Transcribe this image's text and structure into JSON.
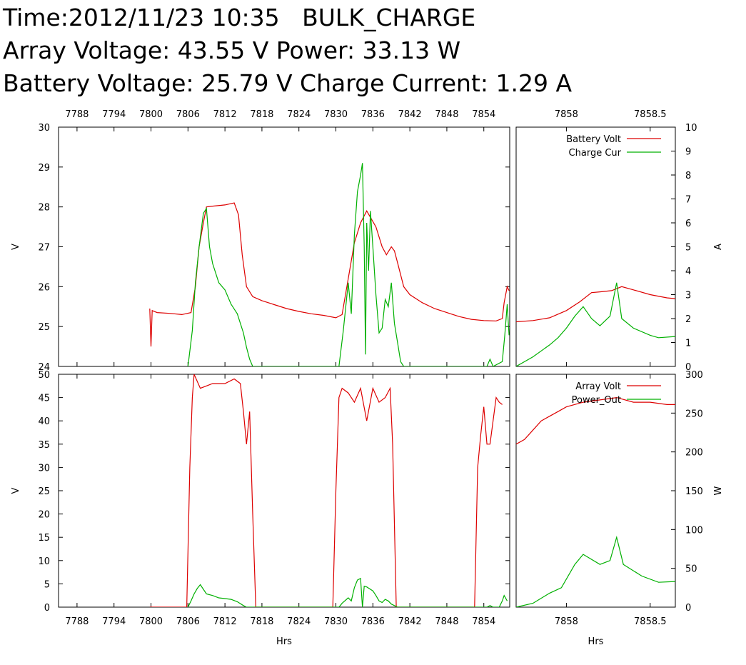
{
  "header": {
    "line1": "Time:2012/11/23 10:35   BULK_CHARGE",
    "line2": "Array Voltage: 43.55 V Power: 33.13 W",
    "line3": "Battery Voltage: 25.79 V Charge Current: 1.29 A"
  },
  "colors": {
    "red": "#dd0000",
    "green": "#00b000",
    "axis": "#000000"
  },
  "chart_data": [
    {
      "id": "battery_long",
      "type": "line",
      "xlabel": "",
      "ylabel": "V",
      "xlim": [
        7785,
        7858.2
      ],
      "ylim": [
        24,
        30
      ],
      "x2ticks": [
        7788,
        7794,
        7800,
        7806,
        7812,
        7818,
        7824,
        7830,
        7836,
        7842,
        7848,
        7854
      ],
      "yticks": [
        24,
        25,
        26,
        27,
        28,
        29,
        30
      ],
      "series": [
        {
          "name": "Battery Volt",
          "color": "#dd0000",
          "axis": "left",
          "points": [
            [
              7799.8,
              25.45
            ],
            [
              7800,
              24.5
            ],
            [
              7800.2,
              25.4
            ],
            [
              7801,
              25.35
            ],
            [
              7803,
              25.33
            ],
            [
              7805,
              25.3
            ],
            [
              7806.5,
              25.35
            ],
            [
              7807.2,
              26.0
            ],
            [
              7807.8,
              27.0
            ],
            [
              7808.5,
              27.6
            ],
            [
              7809,
              28.0
            ],
            [
              7810,
              28.02
            ],
            [
              7812,
              28.05
            ],
            [
              7813.5,
              28.1
            ],
            [
              7814.2,
              27.8
            ],
            [
              7814.8,
              26.8
            ],
            [
              7815.5,
              26.0
            ],
            [
              7816.5,
              25.75
            ],
            [
              7818,
              25.65
            ],
            [
              7820,
              25.55
            ],
            [
              7822,
              25.45
            ],
            [
              7824,
              25.38
            ],
            [
              7826,
              25.32
            ],
            [
              7828,
              25.28
            ],
            [
              7830,
              25.22
            ],
            [
              7831,
              25.3
            ],
            [
              7832,
              26.2
            ],
            [
              7833,
              27.1
            ],
            [
              7834,
              27.6
            ],
            [
              7835,
              27.9
            ],
            [
              7836.5,
              27.5
            ],
            [
              7837.5,
              27.0
            ],
            [
              7838.2,
              26.8
            ],
            [
              7839,
              27.0
            ],
            [
              7839.5,
              26.9
            ],
            [
              7840,
              26.6
            ],
            [
              7841,
              26.0
            ],
            [
              7842,
              25.8
            ],
            [
              7844,
              25.6
            ],
            [
              7846,
              25.45
            ],
            [
              7848,
              25.35
            ],
            [
              7850,
              25.25
            ],
            [
              7852,
              25.18
            ],
            [
              7854,
              25.15
            ],
            [
              7856,
              25.14
            ],
            [
              7857,
              25.2
            ],
            [
              7857.3,
              25.6
            ],
            [
              7857.8,
              26.0
            ],
            [
              7858.1,
              25.9
            ]
          ]
        },
        {
          "name": "Charge Cur",
          "color": "#00b000",
          "axis": "right",
          "points": [
            [
              7806,
              0
            ],
            [
              7806.7,
              1.5
            ],
            [
              7807.2,
              3.5
            ],
            [
              7807.8,
              5.0
            ],
            [
              7808.5,
              6.4
            ],
            [
              7809,
              6.6
            ],
            [
              7809.5,
              5.0
            ],
            [
              7810,
              4.3
            ],
            [
              7811,
              3.5
            ],
            [
              7812,
              3.2
            ],
            [
              7813,
              2.6
            ],
            [
              7814,
              2.2
            ],
            [
              7815,
              1.4
            ],
            [
              7815.5,
              0.8
            ],
            [
              7816,
              0.3
            ],
            [
              7816.5,
              0
            ],
            [
              7830.5,
              0
            ],
            [
              7831.2,
              1.5
            ],
            [
              7832,
              3.5
            ],
            [
              7832.5,
              2.2
            ],
            [
              7833,
              5.5
            ],
            [
              7833.5,
              7.3
            ],
            [
              7834,
              8.0
            ],
            [
              7834.3,
              8.5
            ],
            [
              7834.6,
              5.0
            ],
            [
              7834.8,
              0.5
            ],
            [
              7835,
              6.0
            ],
            [
              7835.3,
              4.0
            ],
            [
              7835.6,
              6.5
            ],
            [
              7836,
              5.0
            ],
            [
              7836.5,
              3.0
            ],
            [
              7837,
              1.4
            ],
            [
              7837.5,
              1.6
            ],
            [
              7838,
              2.8
            ],
            [
              7838.5,
              2.5
            ],
            [
              7839,
              3.5
            ],
            [
              7839.5,
              1.8
            ],
            [
              7840,
              1.0
            ],
            [
              7840.5,
              0.2
            ],
            [
              7841,
              0
            ],
            [
              7854.5,
              0
            ],
            [
              7855,
              0.3
            ],
            [
              7855.5,
              0
            ],
            [
              7857,
              0.2
            ],
            [
              7857.4,
              1.3
            ],
            [
              7857.8,
              2.6
            ],
            [
              7858.1,
              1.3
            ]
          ]
        }
      ]
    },
    {
      "id": "battery_zoom",
      "type": "line",
      "xlabel": "",
      "ylabel": "A",
      "xlim": [
        7857.7,
        7858.65
      ],
      "ylim": [
        0,
        10
      ],
      "x2ticks": [
        7858,
        7858.5
      ],
      "yticks": [
        0,
        1,
        2,
        3,
        4,
        5,
        6,
        7,
        8,
        9,
        10
      ],
      "legend": [
        "Battery Volt",
        "Charge Cur"
      ],
      "series": [
        {
          "name": "Battery Volt",
          "color": "#dd0000",
          "axis": "left",
          "points": [
            [
              7857.7,
              25.12
            ],
            [
              7857.8,
              25.15
            ],
            [
              7857.9,
              25.22
            ],
            [
              7858.0,
              25.4
            ],
            [
              7858.08,
              25.62
            ],
            [
              7858.15,
              25.85
            ],
            [
              7858.2,
              25.87
            ],
            [
              7858.27,
              25.9
            ],
            [
              7858.33,
              26.0
            ],
            [
              7858.4,
              25.92
            ],
            [
              7858.5,
              25.8
            ],
            [
              7858.6,
              25.72
            ],
            [
              7858.65,
              25.7
            ]
          ]
        },
        {
          "name": "Charge Cur",
          "color": "#00b000",
          "axis": "right",
          "points": [
            [
              7857.7,
              0
            ],
            [
              7857.8,
              0.4
            ],
            [
              7857.9,
              0.9
            ],
            [
              7857.95,
              1.2
            ],
            [
              7858.0,
              1.6
            ],
            [
              7858.05,
              2.1
            ],
            [
              7858.1,
              2.5
            ],
            [
              7858.15,
              2.0
            ],
            [
              7858.2,
              1.7
            ],
            [
              7858.26,
              2.1
            ],
            [
              7858.3,
              3.5
            ],
            [
              7858.33,
              2.0
            ],
            [
              7858.4,
              1.6
            ],
            [
              7858.5,
              1.3
            ],
            [
              7858.55,
              1.2
            ],
            [
              7858.65,
              1.25
            ]
          ]
        }
      ]
    },
    {
      "id": "array_long",
      "type": "line",
      "xlabel": "Hrs",
      "ylabel": "V",
      "xlim": [
        7785,
        7858.2
      ],
      "ylim": [
        0,
        50
      ],
      "xticks": [
        7788,
        7794,
        7800,
        7806,
        7812,
        7818,
        7824,
        7830,
        7836,
        7842,
        7848,
        7854
      ],
      "yticks": [
        0,
        5,
        10,
        15,
        20,
        25,
        30,
        35,
        40,
        45,
        50
      ],
      "series": [
        {
          "name": "Array Volt",
          "color": "#dd0000",
          "axis": "left",
          "points": [
            [
              7799.8,
              0
            ],
            [
              7805.8,
              0
            ],
            [
              7806.3,
              30
            ],
            [
              7806.7,
              45
            ],
            [
              7807,
              50
            ],
            [
              7808,
              47
            ],
            [
              7809,
              47.5
            ],
            [
              7810,
              48
            ],
            [
              7812,
              48
            ],
            [
              7813.5,
              49
            ],
            [
              7814.5,
              48
            ],
            [
              7815,
              42
            ],
            [
              7815.5,
              35
            ],
            [
              7816,
              42
            ],
            [
              7816.5,
              20
            ],
            [
              7817,
              0
            ],
            [
              7829.5,
              0
            ],
            [
              7830,
              25
            ],
            [
              7830.5,
              45
            ],
            [
              7831,
              47
            ],
            [
              7832,
              46
            ],
            [
              7833,
              44
            ],
            [
              7834,
              47
            ],
            [
              7835,
              40
            ],
            [
              7836,
              47
            ],
            [
              7837,
              44
            ],
            [
              7838,
              45
            ],
            [
              7838.8,
              47
            ],
            [
              7839.2,
              35
            ],
            [
              7839.8,
              0
            ],
            [
              7852.5,
              0
            ],
            [
              7853,
              30
            ],
            [
              7853.5,
              37
            ],
            [
              7854,
              43
            ],
            [
              7854.5,
              35
            ],
            [
              7855,
              35
            ],
            [
              7855.5,
              40
            ],
            [
              7856,
              45
            ],
            [
              7856.5,
              44
            ],
            [
              7857,
              43.5
            ]
          ]
        },
        {
          "name": "Power_Out",
          "color": "#00b000",
          "axis": "right",
          "points": [
            [
              7806,
              0
            ],
            [
              7806.5,
              8
            ],
            [
              7807,
              17
            ],
            [
              7807.5,
              24
            ],
            [
              7808,
              29
            ],
            [
              7808.5,
              23
            ],
            [
              7809,
              17
            ],
            [
              7810,
              15
            ],
            [
              7811,
              12
            ],
            [
              7812,
              11
            ],
            [
              7813,
              10
            ],
            [
              7814,
              7
            ],
            [
              7815,
              2
            ],
            [
              7815.5,
              0
            ],
            [
              7830.5,
              0
            ],
            [
              7831,
              5
            ],
            [
              7832,
              12
            ],
            [
              7832.5,
              8
            ],
            [
              7833,
              25
            ],
            [
              7833.5,
              35
            ],
            [
              7834,
              37
            ],
            [
              7834.3,
              0
            ],
            [
              7834.6,
              27
            ],
            [
              7835,
              26
            ],
            [
              7836,
              21
            ],
            [
              7836.5,
              15
            ],
            [
              7837,
              8
            ],
            [
              7837.5,
              6
            ],
            [
              7838,
              10
            ],
            [
              7838.5,
              8
            ],
            [
              7839,
              4
            ],
            [
              7840,
              0
            ],
            [
              7854.5,
              0
            ],
            [
              7855,
              2
            ],
            [
              7855.5,
              0
            ],
            [
              7856.5,
              0
            ],
            [
              7857,
              8
            ],
            [
              7857.3,
              15
            ],
            [
              7857.8,
              8
            ]
          ]
        }
      ]
    },
    {
      "id": "array_zoom",
      "type": "line",
      "xlabel": "Hrs",
      "ylabel": "W",
      "xlim": [
        7857.7,
        7858.65
      ],
      "ylim": [
        0,
        300
      ],
      "xticks": [
        7858,
        7858.5
      ],
      "yticks": [
        0,
        50,
        100,
        150,
        200,
        250,
        300
      ],
      "legend": [
        "Array Volt",
        "Power_Out"
      ],
      "series": [
        {
          "name": "Array Volt",
          "color": "#dd0000",
          "axis": "left",
          "points": [
            [
              7857.7,
              35
            ],
            [
              7857.75,
              36
            ],
            [
              7857.8,
              38
            ],
            [
              7857.85,
              40
            ],
            [
              7857.9,
              41
            ],
            [
              7857.95,
              42
            ],
            [
              7858.0,
              43
            ],
            [
              7858.1,
              44
            ],
            [
              7858.2,
              44.5
            ],
            [
              7858.3,
              45
            ],
            [
              7858.4,
              44
            ],
            [
              7858.5,
              44
            ],
            [
              7858.6,
              43.5
            ],
            [
              7858.65,
              43.5
            ]
          ]
        },
        {
          "name": "Power_Out",
          "color": "#00b000",
          "axis": "right",
          "points": [
            [
              7857.7,
              0
            ],
            [
              7857.8,
              5
            ],
            [
              7857.9,
              18
            ],
            [
              7857.97,
              25
            ],
            [
              7858.05,
              55
            ],
            [
              7858.1,
              68
            ],
            [
              7858.2,
              55
            ],
            [
              7858.26,
              60
            ],
            [
              7858.3,
              90
            ],
            [
              7858.34,
              55
            ],
            [
              7858.45,
              40
            ],
            [
              7858.55,
              32
            ],
            [
              7858.65,
              33
            ]
          ]
        }
      ]
    }
  ]
}
